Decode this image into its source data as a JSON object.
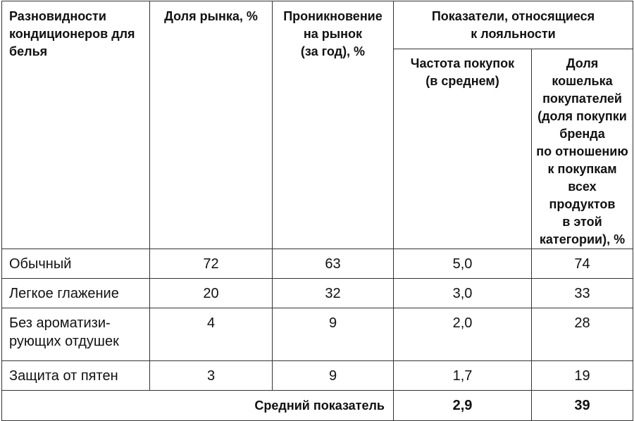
{
  "table": {
    "headers": {
      "variety": "Разновидности\nкондиционеров для\nбелья",
      "market_share": "Доля рынка, %",
      "penetration": "Проникновение\nна рынок\n(за год), %",
      "loyalty_group": "Показатели, относящиеся\nк лояльности",
      "purchase_frequency": "Частота покупок\n(в среднем)",
      "share_of_wallet": "Доля кошелька\nпокупателей\n(доля покупки\nбренда\nпо отношению\nк покупкам\nвсех продуктов\nв этой\nкатегории), %"
    },
    "rows": [
      {
        "variety": "Обычный",
        "market_share": "72",
        "penetration": "63",
        "purchase_frequency": "5,0",
        "share_of_wallet": "74"
      },
      {
        "variety": "Легкое глажение",
        "market_share": "20",
        "penetration": "32",
        "purchase_frequency": "3,0",
        "share_of_wallet": "33"
      },
      {
        "variety": "Без ароматизи-\nрующих отдушек",
        "market_share": "4",
        "penetration": "9",
        "purchase_frequency": "2,0",
        "share_of_wallet": "28"
      },
      {
        "variety": "Защита от пятен",
        "market_share": "3",
        "penetration": "9",
        "purchase_frequency": "1,7",
        "share_of_wallet": "19"
      }
    ],
    "average": {
      "label": "Средний показатель",
      "purchase_frequency": "2,9",
      "share_of_wallet": "39"
    }
  }
}
